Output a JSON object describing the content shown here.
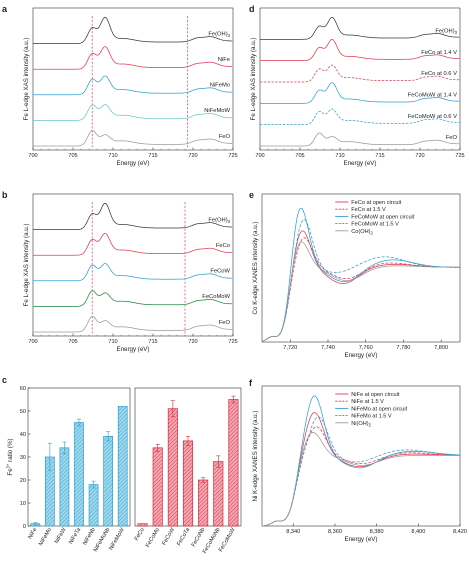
{
  "colors": {
    "fe_oh3": "#3a3a3a",
    "nife": "#e03a52",
    "nifemo": "#2f9fd2",
    "nifemow": "#6cc8c2",
    "feo": "#9a9a9a",
    "feco": "#e03a52",
    "fecow": "#2f9fd2",
    "fecomow": "#1c8a3a",
    "dashed_marker": "#d9446a",
    "bar_blue_fill": "#9fd9ec",
    "bar_blue_edge": "#2f9fd2",
    "bar_red_fill": "#f3a9b3",
    "bar_red_edge": "#d8283c"
  },
  "chart_data": [
    {
      "panel": "a",
      "type": "line",
      "xlabel": "Energy (eV)",
      "ylabel": "Fe L-edge XAS intensity (a.u.)",
      "xlim": [
        700,
        725
      ],
      "xticks": [
        700,
        705,
        710,
        715,
        720,
        725
      ],
      "xticklabels": [
        "700",
        "705",
        "710",
        "715",
        "720",
        "725"
      ],
      "markers_x": [
        707.4,
        719.3
      ],
      "series": [
        {
          "name": "Fe(OH)3",
          "label_main": "Fe(OH)",
          "label_sub": "3",
          "color_key": "fe_oh3",
          "peak_ratio": 1.6
        },
        {
          "name": "NiFe",
          "label_main": "NiFe",
          "label_sub": "",
          "color_key": "nife",
          "peak_ratio": 1.35
        },
        {
          "name": "NiFeMo",
          "label_main": "NiFeMo",
          "label_sub": "",
          "color_key": "nifemo",
          "peak_ratio": 1.1
        },
        {
          "name": "NiFeMoW",
          "label_main": "NiFeMoW",
          "label_sub": "",
          "color_key": "nifemow",
          "peak_ratio": 0.9
        },
        {
          "name": "FeO",
          "label_main": "FeO",
          "label_sub": "",
          "color_key": "feo",
          "peak_ratio": 0.6
        }
      ]
    },
    {
      "panel": "b",
      "type": "line",
      "xlabel": "Energy (eV)",
      "ylabel": "Fe L-edge XAS intensity (a.u.)",
      "xlim": [
        700,
        725
      ],
      "xticks": [
        700,
        705,
        710,
        715,
        720,
        725
      ],
      "xticklabels": [
        "700",
        "705",
        "710",
        "715",
        "720",
        "725"
      ],
      "markers_x": [
        707.4,
        719.0
      ],
      "series": [
        {
          "name": "Fe(OH)3",
          "label_main": "Fe(OH)",
          "label_sub": "3",
          "color_key": "fe_oh3",
          "peak_ratio": 1.6
        },
        {
          "name": "FeCo",
          "label_main": "FeCo",
          "label_sub": "",
          "color_key": "feco",
          "peak_ratio": 1.3
        },
        {
          "name": "FeCoW",
          "label_main": "FeCoW",
          "label_sub": "",
          "color_key": "fecow",
          "peak_ratio": 1.0
        },
        {
          "name": "FeCoMoW",
          "label_main": "FeCoMoW",
          "label_sub": "",
          "color_key": "fecomow",
          "peak_ratio": 0.75
        },
        {
          "name": "FeO",
          "label_main": "FeO",
          "label_sub": "",
          "color_key": "feo",
          "peak_ratio": 0.6
        }
      ]
    },
    {
      "panel": "c",
      "type": "bar",
      "ylabel_main": "Fe",
      "ylabel_sup": "3+",
      "ylabel_rest": " ratio (%)",
      "ylim": [
        0,
        60
      ],
      "yticks": [
        0,
        10,
        20,
        30,
        40,
        50,
        60
      ],
      "yticklabels": [
        "0",
        "10",
        "20",
        "30",
        "40",
        "50",
        "60"
      ],
      "groups": [
        {
          "fill_key": "bar_blue_fill",
          "edge_key": "bar_blue_edge",
          "categories": [
            "NiFe",
            "NiFeMo",
            "NiFeW",
            "NiFeTa",
            "NiFeNb",
            "NiFeMoNb",
            "NiFeMoW"
          ],
          "values": [
            1,
            30,
            34,
            45,
            18,
            39,
            52
          ],
          "errors": [
            0.5,
            6,
            2.5,
            1.5,
            1.5,
            2,
            0
          ]
        },
        {
          "fill_key": "bar_red_fill",
          "edge_key": "bar_red_edge",
          "categories": [
            "FeCo",
            "FeCoMo",
            "FeCoW",
            "FeCoTa",
            "FeCoNb",
            "FeCoMoNb",
            "FeCoMoW"
          ],
          "values": [
            1,
            34,
            51,
            37,
            20,
            28,
            55
          ],
          "errors": [
            0,
            1.5,
            3.5,
            2,
            1,
            2.5,
            1.5
          ]
        }
      ]
    },
    {
      "panel": "d",
      "type": "line",
      "xlabel": "Energy (eV)",
      "ylabel": "Fe L-edge XAS intensity (a.u.)",
      "xlim": [
        700,
        725
      ],
      "xticks": [
        700,
        705,
        710,
        715,
        720,
        725
      ],
      "xticklabels": [
        "700",
        "705",
        "710",
        "715",
        "720",
        "725"
      ],
      "markers_x": [],
      "series": [
        {
          "name": "Fe(OH)3",
          "label_main": "Fe(OH)",
          "label_sub": "3",
          "color_key": "fe_oh3",
          "dash": false,
          "peak_ratio": 1.6
        },
        {
          "name": "FeCo at 1.4 V",
          "label_main": "FeCo at 1.4 V",
          "label_sub": "",
          "color_key": "feco",
          "dash": false,
          "peak_ratio": 1.55
        },
        {
          "name": "FeCo at 0.6 V",
          "label_main": "FeCo at 0.6 V",
          "label_sub": "",
          "color_key": "feco",
          "dash": true,
          "peak_ratio": 1.2
        },
        {
          "name": "FeCoMoW at 1.4 V",
          "label_main": "FeCoMoW at 1.4 V",
          "label_sub": "",
          "color_key": "fecow",
          "dash": false,
          "peak_ratio": 1.5
        },
        {
          "name": "FeCoMoW at 0.6 V",
          "label_main": "FeCoMoW at 0.6 V",
          "label_sub": "",
          "color_key": "fecow",
          "dash": true,
          "peak_ratio": 1.1
        },
        {
          "name": "FeO",
          "label_main": "FeO",
          "label_sub": "",
          "color_key": "feo",
          "dash": false,
          "peak_ratio": 0.6
        }
      ]
    },
    {
      "panel": "e",
      "type": "line",
      "xlabel": "Energy (eV)",
      "ylabel_main": "Co K-edge XANES intensity (a.u.)",
      "xlim": [
        7705,
        7810
      ],
      "xticks": [
        7720,
        7740,
        7760,
        7780,
        7800
      ],
      "xticklabels": [
        "7,720",
        "7,740",
        "7,760",
        "7,780",
        "7,800"
      ],
      "edge_x": 7716,
      "series": [
        {
          "name": "FeCo at open circuit",
          "label_main": "FeCo at open circuit",
          "label_sub": "",
          "color_key": "feco",
          "dash": false,
          "peak_x": 7726,
          "peak_y": 1.38,
          "dip_x": 7748,
          "dip_y": 0.78,
          "hump_x": 7775,
          "hump_y": 1.04
        },
        {
          "name": "FeCo at 1.5 V",
          "label_main": "FeCo at 1.5 V",
          "label_sub": "",
          "color_key": "feco",
          "dash": true,
          "peak_x": 7727,
          "peak_y": 1.3,
          "dip_x": 7750,
          "dip_y": 0.84,
          "hump_x": 7772,
          "hump_y": 1.06
        },
        {
          "name": "FeCoMoW at open circuit",
          "label_main": "FeCoMoW at open circuit",
          "label_sub": "",
          "color_key": "fecow",
          "dash": false,
          "peak_x": 7725,
          "peak_y": 1.62,
          "dip_x": 7749,
          "dip_y": 0.8,
          "hump_x": 7774,
          "hump_y": 1.1
        },
        {
          "name": "FeCoMoW at 1.5 V",
          "label_main": "FeCoMoW at 1.5 V",
          "label_sub": "",
          "color_key": "fecow",
          "dash": true,
          "peak_x": 7727,
          "peak_y": 1.48,
          "dip_x": 7745,
          "dip_y": 0.92,
          "hump_x": 7770,
          "hump_y": 1.14
        },
        {
          "name": "Co(OH)2",
          "label_main": "Co(OH)",
          "label_sub": "2",
          "color_key": "feo",
          "dash": false,
          "peak_x": 7725,
          "peak_y": 1.28,
          "dip_x": 7750,
          "dip_y": 0.82,
          "hump_x": 7776,
          "hump_y": 1.02
        }
      ]
    },
    {
      "panel": "f",
      "type": "line",
      "xlabel": "Energy (eV)",
      "ylabel_main": "Ni K-edge XANES intensity (a.u.)",
      "xlim": [
        8325,
        8420
      ],
      "xticks": [
        8340,
        8360,
        8380,
        8400,
        8420
      ],
      "xticklabels": [
        "8,340",
        "8,360",
        "8,380",
        "8,400",
        "8,420"
      ],
      "edge_x": 8338,
      "series": [
        {
          "name": "NiFe at open circuit",
          "label_main": "NiFe at open circuit",
          "label_sub": "",
          "color_key": "feco",
          "dash": false,
          "peak_x": 8350,
          "peak_y": 1.45,
          "dip_x": 8372,
          "dip_y": 0.84,
          "hump_x": 8397,
          "hump_y": 1.02
        },
        {
          "name": "NiFe at 1.5 V",
          "label_main": "NiFe at 1.5 V",
          "label_sub": "",
          "color_key": "feco",
          "dash": true,
          "peak_x": 8351,
          "peak_y": 1.3,
          "dip_x": 8373,
          "dip_y": 0.88,
          "hump_x": 8395,
          "hump_y": 1.04
        },
        {
          "name": "NiFeMo at open circuit",
          "label_main": "NiFeMo at open circuit",
          "label_sub": "",
          "color_key": "fecow",
          "dash": false,
          "peak_x": 8350,
          "peak_y": 1.62,
          "dip_x": 8372,
          "dip_y": 0.82,
          "hump_x": 8397,
          "hump_y": 1.06
        },
        {
          "name": "NiFeMo at 1.5 V",
          "label_main": "NiFeMo at 1.5 V",
          "label_sub": "",
          "color_key": "fecow",
          "dash": true,
          "peak_x": 8352,
          "peak_y": 1.4,
          "dip_x": 8371,
          "dip_y": 0.9,
          "hump_x": 8394,
          "hump_y": 1.08
        },
        {
          "name": "Ni(OH)2",
          "label_main": "Ni(OH)",
          "label_sub": "2",
          "color_key": "feo",
          "dash": false,
          "peak_x": 8349,
          "peak_y": 1.25,
          "dip_x": 8373,
          "dip_y": 0.86,
          "hump_x": 8398,
          "hump_y": 1.0
        }
      ]
    }
  ],
  "panel_letters": [
    "a",
    "b",
    "c",
    "d",
    "e",
    "f"
  ]
}
